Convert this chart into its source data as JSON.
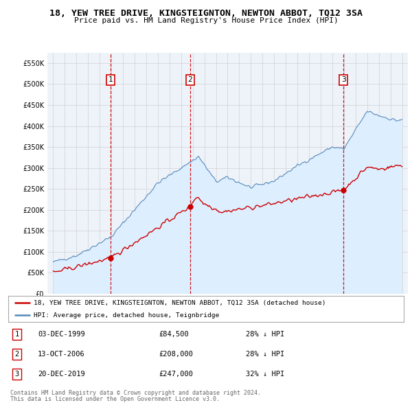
{
  "title": "18, YEW TREE DRIVE, KINGSTEIGNTON, NEWTON ABBOT, TQ12 3SA",
  "subtitle": "Price paid vs. HM Land Registry's House Price Index (HPI)",
  "legend_line1": "18, YEW TREE DRIVE, KINGSTEIGNTON, NEWTON ABBOT, TQ12 3SA (detached house)",
  "legend_line2": "HPI: Average price, detached house, Teignbridge",
  "transactions": [
    {
      "num": 1,
      "date": "03-DEC-1999",
      "price": 84500,
      "year": 1999.92,
      "pct": "28% ↓ HPI"
    },
    {
      "num": 2,
      "date": "13-OCT-2006",
      "price": 208000,
      "year": 2006.78,
      "pct": "28% ↓ HPI"
    },
    {
      "num": 3,
      "date": "20-DEC-2019",
      "price": 247000,
      "year": 2019.96,
      "pct": "32% ↓ HPI"
    }
  ],
  "footer1": "Contains HM Land Registry data © Crown copyright and database right 2024.",
  "footer2": "This data is licensed under the Open Government Licence v3.0.",
  "price_color": "#cc0000",
  "hpi_color": "#5588bb",
  "hpi_fill_color": "#ddeeff",
  "ylim_max": 575000,
  "bg_color": "#eef3fa"
}
